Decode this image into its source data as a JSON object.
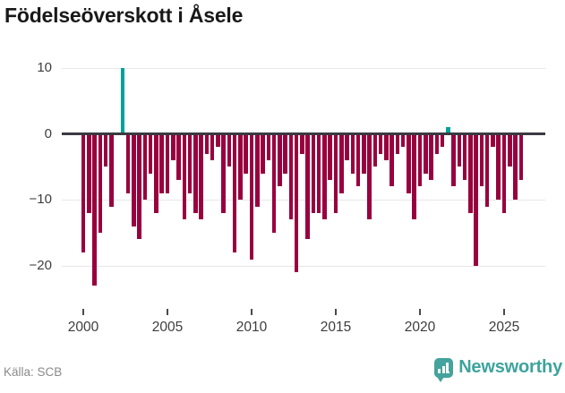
{
  "title": "Födelseöverskott i Åsele",
  "source_label": "Källa: SCB",
  "brand": {
    "name": "Newsworthy",
    "logo_icon": "bar-chart-badge-icon",
    "color": "#3da49c"
  },
  "colors": {
    "negative_bar": "#99003e",
    "positive_bar": "#00a29a",
    "zero_line": "#3a3a41",
    "gridline": "#e7e7e7",
    "title_text": "#191919",
    "axis_text": "#3d3d3d",
    "source_text": "#8a8a8a",
    "background": "#ffffff"
  },
  "chart_data": {
    "type": "bar",
    "title": "Födelseöverskott i Åsele",
    "xlabel": "",
    "ylabel": "",
    "grid": "horizontal",
    "period": "4-month periods (3 per year)",
    "x_start": "2000-P1",
    "x_end": "2026-P1",
    "periods_per_year": 3,
    "y_ticks": [
      10,
      0,
      -10,
      -20
    ],
    "x_tick_years": [
      2000,
      2005,
      2010,
      2015,
      2020,
      2025
    ],
    "axis_range_y": [
      -26,
      12
    ],
    "values": [
      -18,
      -12,
      -23,
      -15,
      -5,
      -11,
      0,
      10,
      -9,
      -14,
      -16,
      -10,
      -6,
      -12,
      -9,
      -9,
      -4,
      -7,
      -13,
      -9,
      -12,
      -13,
      -3,
      -4,
      -2,
      -12,
      -5,
      -18,
      -10,
      -6,
      -19,
      -11,
      -6,
      -4,
      -15,
      -8,
      -6,
      -13,
      -21,
      -3,
      -16,
      -12,
      -12,
      -13,
      -7,
      -12,
      -9,
      -4,
      -6,
      -8,
      -6,
      -13,
      -5,
      -3,
      -4,
      -8,
      -3,
      -2,
      -9,
      -13,
      -8,
      -6,
      -7,
      -3,
      -2,
      1,
      -8,
      -5,
      -7,
      -12,
      -20,
      -8,
      -11,
      -2,
      -10,
      -12,
      -5,
      -10,
      -7
    ],
    "notable_points": {
      "max_positive": {
        "x": "2002-P2",
        "value": 10
      },
      "small_positive": {
        "x": "2021-P3",
        "value": 1
      },
      "min": {
        "x": "2000-P3",
        "value": -23
      }
    },
    "legend": "none"
  }
}
